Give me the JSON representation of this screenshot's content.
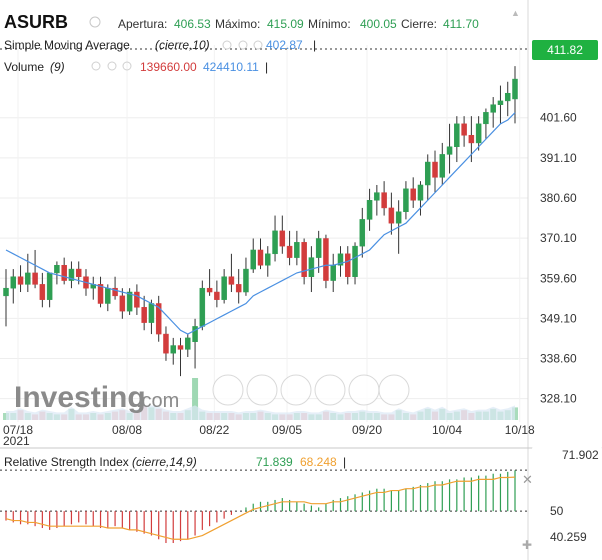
{
  "header": {
    "symbol": "ASURB",
    "open_label": "Apertura:",
    "open": "406.53",
    "high_label": "Máximo:",
    "high": "415.09",
    "low_label": "Mínimo:",
    "low": "400.05",
    "close_label": "Cierre:",
    "close": "411.70"
  },
  "sma": {
    "label": "Simple Moving Average",
    "params": "(cierre,10)",
    "value": "402.87"
  },
  "volume": {
    "label": "Volume",
    "params": "(9)",
    "value1": "139660.00",
    "value2": "424410.11"
  },
  "rsi": {
    "label": "Relative Strength Index",
    "params": "(cierre,14,9)",
    "value1": "71.839",
    "value2": "68.248",
    "tag": "71.902",
    "level": "50",
    "bottom": "40.259"
  },
  "price_tag": "411.82",
  "watermark": {
    "main": "Investing",
    "suffix": ".com"
  },
  "colors": {
    "up": "#2e9e53",
    "down": "#d23c3c",
    "sma": "#4a90e2",
    "rsi_signal": "#f0a030",
    "volume": "#c9d9ec"
  },
  "chart_data": {
    "type": "candlestick",
    "y_ticks": [
      "401.60",
      "391.10",
      "380.60",
      "370.10",
      "359.60",
      "349.10",
      "338.60",
      "328.10"
    ],
    "x_ticks": [
      "07/18",
      "08/08",
      "08/22",
      "09/05",
      "09/20",
      "10/04",
      "10/18"
    ],
    "x_year": "2021",
    "candles": [
      {
        "o": 355,
        "h": 362,
        "l": 347,
        "c": 357
      },
      {
        "o": 357,
        "h": 362,
        "l": 353,
        "c": 360
      },
      {
        "o": 360,
        "h": 363,
        "l": 356,
        "c": 358
      },
      {
        "o": 358,
        "h": 366,
        "l": 356,
        "c": 361
      },
      {
        "o": 361,
        "h": 367,
        "l": 357,
        "c": 358
      },
      {
        "o": 358,
        "h": 361,
        "l": 352,
        "c": 354
      },
      {
        "o": 354,
        "h": 361,
        "l": 352,
        "c": 361
      },
      {
        "o": 361,
        "h": 364,
        "l": 358,
        "c": 363
      },
      {
        "o": 363,
        "h": 365,
        "l": 358,
        "c": 359
      },
      {
        "o": 359,
        "h": 364,
        "l": 357,
        "c": 362
      },
      {
        "o": 362,
        "h": 364,
        "l": 358,
        "c": 360
      },
      {
        "o": 360,
        "h": 362,
        "l": 355,
        "c": 357
      },
      {
        "o": 357,
        "h": 360,
        "l": 354,
        "c": 358
      },
      {
        "o": 358,
        "h": 360,
        "l": 352,
        "c": 353
      },
      {
        "o": 353,
        "h": 358,
        "l": 351,
        "c": 357
      },
      {
        "o": 357,
        "h": 360,
        "l": 354,
        "c": 355
      },
      {
        "o": 355,
        "h": 357,
        "l": 349,
        "c": 351
      },
      {
        "o": 351,
        "h": 357,
        "l": 350,
        "c": 356
      },
      {
        "o": 356,
        "h": 358,
        "l": 350,
        "c": 352
      },
      {
        "o": 352,
        "h": 355,
        "l": 346,
        "c": 348
      },
      {
        "o": 348,
        "h": 354,
        "l": 345,
        "c": 353
      },
      {
        "o": 353,
        "h": 355,
        "l": 343,
        "c": 345
      },
      {
        "o": 345,
        "h": 347,
        "l": 338,
        "c": 340
      },
      {
        "o": 340,
        "h": 344,
        "l": 337,
        "c": 342
      },
      {
        "o": 342,
        "h": 344,
        "l": 334,
        "c": 341
      },
      {
        "o": 341,
        "h": 345,
        "l": 339,
        "c": 344
      },
      {
        "o": 343,
        "h": 349,
        "l": 336,
        "c": 347
      },
      {
        "o": 347,
        "h": 359,
        "l": 346,
        "c": 357
      },
      {
        "o": 357,
        "h": 362,
        "l": 355,
        "c": 356
      },
      {
        "o": 356,
        "h": 359,
        "l": 352,
        "c": 354
      },
      {
        "o": 354,
        "h": 362,
        "l": 353,
        "c": 360
      },
      {
        "o": 360,
        "h": 366,
        "l": 356,
        "c": 358
      },
      {
        "o": 358,
        "h": 362,
        "l": 353,
        "c": 356
      },
      {
        "o": 356,
        "h": 365,
        "l": 355,
        "c": 362
      },
      {
        "o": 362,
        "h": 370,
        "l": 361,
        "c": 367
      },
      {
        "o": 367,
        "h": 370,
        "l": 362,
        "c": 363
      },
      {
        "o": 363,
        "h": 368,
        "l": 360,
        "c": 366
      },
      {
        "o": 366,
        "h": 376,
        "l": 364,
        "c": 372
      },
      {
        "o": 372,
        "h": 376,
        "l": 366,
        "c": 368
      },
      {
        "o": 368,
        "h": 372,
        "l": 363,
        "c": 365
      },
      {
        "o": 365,
        "h": 372,
        "l": 363,
        "c": 369
      },
      {
        "o": 369,
        "h": 370,
        "l": 358,
        "c": 360
      },
      {
        "o": 360,
        "h": 368,
        "l": 356,
        "c": 365
      },
      {
        "o": 365,
        "h": 372,
        "l": 361,
        "c": 370
      },
      {
        "o": 370,
        "h": 371,
        "l": 357,
        "c": 359
      },
      {
        "o": 359,
        "h": 366,
        "l": 356,
        "c": 363
      },
      {
        "o": 363,
        "h": 368,
        "l": 360,
        "c": 366
      },
      {
        "o": 366,
        "h": 368,
        "l": 358,
        "c": 360
      },
      {
        "o": 360,
        "h": 369,
        "l": 358,
        "c": 368
      },
      {
        "o": 368,
        "h": 378,
        "l": 365,
        "c": 375
      },
      {
        "o": 375,
        "h": 383,
        "l": 372,
        "c": 380
      },
      {
        "o": 380,
        "h": 384,
        "l": 376,
        "c": 382
      },
      {
        "o": 382,
        "h": 385,
        "l": 376,
        "c": 378
      },
      {
        "o": 378,
        "h": 382,
        "l": 371,
        "c": 374
      },
      {
        "o": 374,
        "h": 380,
        "l": 366,
        "c": 377
      },
      {
        "o": 377,
        "h": 385,
        "l": 375,
        "c": 383
      },
      {
        "o": 383,
        "h": 386,
        "l": 378,
        "c": 380
      },
      {
        "o": 380,
        "h": 385,
        "l": 376,
        "c": 384
      },
      {
        "o": 384,
        "h": 392,
        "l": 380,
        "c": 390
      },
      {
        "o": 390,
        "h": 393,
        "l": 382,
        "c": 386
      },
      {
        "o": 386,
        "h": 395,
        "l": 384,
        "c": 392
      },
      {
        "o": 392,
        "h": 400,
        "l": 387,
        "c": 394
      },
      {
        "o": 394,
        "h": 402,
        "l": 390,
        "c": 400
      },
      {
        "o": 400,
        "h": 402,
        "l": 394,
        "c": 397
      },
      {
        "o": 397,
        "h": 402,
        "l": 390,
        "c": 395
      },
      {
        "o": 395,
        "h": 402,
        "l": 393,
        "c": 400
      },
      {
        "o": 400,
        "h": 404,
        "l": 396,
        "c": 403
      },
      {
        "o": 403,
        "h": 407,
        "l": 399,
        "c": 405
      },
      {
        "o": 405,
        "h": 410,
        "l": 400,
        "c": 406
      },
      {
        "o": 406,
        "h": 411,
        "l": 402,
        "c": 408
      },
      {
        "o": 406.5,
        "h": 415.1,
        "l": 400.1,
        "c": 411.7
      }
    ],
    "sma10": [
      367,
      366,
      365,
      364,
      363,
      362,
      361,
      360.5,
      360,
      359.5,
      359,
      358.5,
      358,
      357.5,
      357,
      356.5,
      356,
      355.5,
      355,
      354,
      353,
      352,
      350,
      348,
      346,
      345,
      346,
      347,
      348,
      349,
      350,
      351,
      352,
      353,
      355,
      356,
      357,
      358,
      359,
      360,
      361,
      361.5,
      362,
      362.5,
      363,
      363,
      363.5,
      364,
      365,
      366,
      367,
      369,
      371,
      372,
      373,
      374,
      376,
      378,
      380,
      382,
      384,
      386,
      388,
      390,
      392,
      394,
      396,
      398,
      400,
      401,
      402.9
    ],
    "volume": [
      5,
      5,
      7,
      5,
      4,
      6,
      5,
      4,
      4,
      8,
      4,
      4,
      5,
      4,
      5,
      6,
      7,
      5,
      6,
      10,
      9,
      8,
      6,
      5,
      5,
      7,
      30,
      6,
      5,
      5,
      5,
      5,
      4,
      5,
      5,
      6,
      5,
      4,
      4,
      4,
      5,
      5,
      4,
      4,
      6,
      5,
      4,
      5,
      5,
      6,
      5,
      5,
      4,
      4,
      7,
      5,
      4,
      6,
      8,
      6,
      8,
      5,
      6,
      7,
      5,
      6,
      6,
      8,
      6,
      7,
      9
    ],
    "rsi": [
      45,
      44,
      43,
      43,
      42,
      41,
      40,
      41,
      42,
      43,
      44,
      43,
      42,
      41,
      41,
      42,
      41,
      40,
      39,
      38,
      37,
      35,
      33,
      33,
      34,
      35,
      37,
      40,
      42,
      44,
      46,
      48,
      50,
      52,
      54,
      55,
      55,
      56,
      57,
      56,
      55,
      54,
      53,
      52,
      54,
      56,
      57,
      58,
      59,
      60,
      61,
      62,
      62,
      61,
      61,
      62,
      63,
      64,
      65,
      66,
      66,
      67,
      67,
      68,
      68,
      69,
      69,
      70,
      70,
      71,
      71.8
    ],
    "rsi_signal": [
      46,
      45,
      45,
      44,
      44,
      43,
      42,
      42,
      42,
      42,
      42,
      42,
      42,
      42,
      41,
      41,
      41,
      40,
      40,
      39,
      38,
      37,
      36,
      35,
      35,
      35,
      36,
      37,
      39,
      41,
      43,
      45,
      47,
      49,
      51,
      52,
      53,
      54,
      55,
      55,
      55,
      55,
      54,
      54,
      54,
      55,
      55,
      56,
      57,
      58,
      59,
      60,
      60,
      61,
      61,
      62,
      62,
      63,
      63,
      64,
      64,
      65,
      66,
      66,
      66,
      67,
      67,
      67,
      68,
      68,
      68.2
    ]
  }
}
